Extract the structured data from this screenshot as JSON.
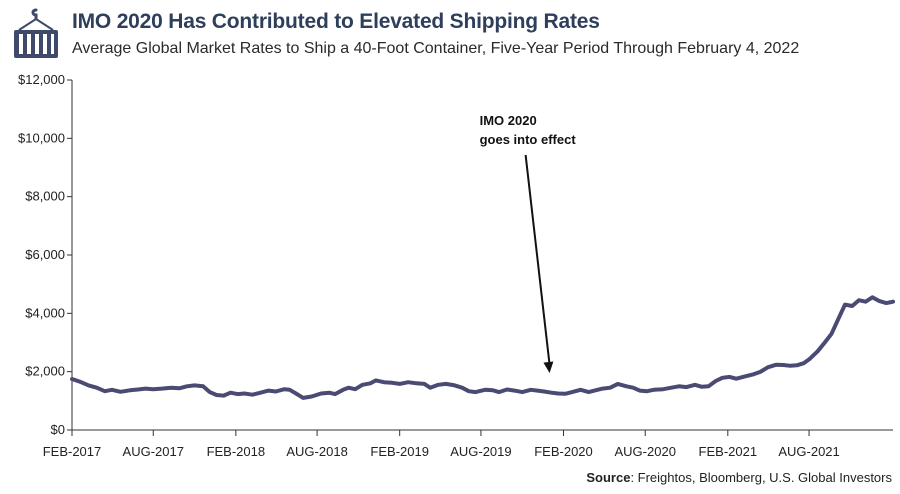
{
  "header": {
    "title": "IMO 2020 Has Contributed to Elevated Shipping Rates",
    "subtitle": "Average Global Market Rates to Ship a 40-Foot Container, Five-Year Period Through February 4, 2022",
    "logo_icon": "shipping-container-crane-icon"
  },
  "source": {
    "label": "Source",
    "text": ": Freightos, Bloomberg, U.S. Global Investors"
  },
  "colors": {
    "line": "#4a4a72",
    "title": "#2e3f5c",
    "axis": "#333333",
    "logo": "#3f4a6b"
  },
  "chart_data": {
    "type": "line",
    "title": "IMO 2020 Has Contributed to Elevated Shipping Rates",
    "xlabel": "",
    "ylabel": "",
    "ylim": [
      0,
      12000
    ],
    "yticks": [
      0,
      2000,
      4000,
      6000,
      8000,
      10000,
      12000
    ],
    "ytick_labels": [
      "$0",
      "$2,000",
      "$4,000",
      "$6,000",
      "$8,000",
      "$10,000",
      "$12,000"
    ],
    "x_range": [
      "2017-02-01",
      "2022-02-04"
    ],
    "xtick_dates": [
      "2017-02-01",
      "2017-08-01",
      "2018-02-01",
      "2018-08-01",
      "2019-02-01",
      "2019-08-01",
      "2020-02-01",
      "2020-08-01",
      "2021-02-01",
      "2021-08-01"
    ],
    "xtick_labels": [
      "FEB-2017",
      "AUG-2017",
      "FEB-2018",
      "AUG-2018",
      "FEB-2019",
      "AUG-2019",
      "FEB-2020",
      "AUG-2020",
      "FEB-2021",
      "AUG-2021"
    ],
    "grid": false,
    "legend": "none",
    "annotation": {
      "lines": [
        "IMO 2020",
        "goes into effect"
      ],
      "date": "2020-01-01",
      "value": 1750
    },
    "series": [
      {
        "points": [
          [
            "2017-02-01",
            1750
          ],
          [
            "2017-02-20",
            1650
          ],
          [
            "2017-03-10",
            1530
          ],
          [
            "2017-03-28",
            1450
          ],
          [
            "2017-04-15",
            1330
          ],
          [
            "2017-05-01",
            1380
          ],
          [
            "2017-05-20",
            1310
          ],
          [
            "2017-06-10",
            1360
          ],
          [
            "2017-06-28",
            1390
          ],
          [
            "2017-07-15",
            1420
          ],
          [
            "2017-08-01",
            1400
          ],
          [
            "2017-08-20",
            1420
          ],
          [
            "2017-09-10",
            1450
          ],
          [
            "2017-09-28",
            1430
          ],
          [
            "2017-10-15",
            1500
          ],
          [
            "2017-11-01",
            1530
          ],
          [
            "2017-11-20",
            1500
          ],
          [
            "2017-12-05",
            1300
          ],
          [
            "2017-12-20",
            1200
          ],
          [
            "2018-01-05",
            1180
          ],
          [
            "2018-01-20",
            1280
          ],
          [
            "2018-02-05",
            1230
          ],
          [
            "2018-02-20",
            1250
          ],
          [
            "2018-03-10",
            1210
          ],
          [
            "2018-03-28",
            1280
          ],
          [
            "2018-04-15",
            1350
          ],
          [
            "2018-05-01",
            1320
          ],
          [
            "2018-05-20",
            1400
          ],
          [
            "2018-06-01",
            1380
          ],
          [
            "2018-06-15",
            1250
          ],
          [
            "2018-07-01",
            1100
          ],
          [
            "2018-07-20",
            1150
          ],
          [
            "2018-08-10",
            1250
          ],
          [
            "2018-08-28",
            1280
          ],
          [
            "2018-09-10",
            1230
          ],
          [
            "2018-09-28",
            1380
          ],
          [
            "2018-10-10",
            1450
          ],
          [
            "2018-10-25",
            1400
          ],
          [
            "2018-11-10",
            1550
          ],
          [
            "2018-11-28",
            1600
          ],
          [
            "2018-12-10",
            1700
          ],
          [
            "2018-12-28",
            1640
          ],
          [
            "2019-01-15",
            1620
          ],
          [
            "2019-02-01",
            1580
          ],
          [
            "2019-02-20",
            1640
          ],
          [
            "2019-03-10",
            1600
          ],
          [
            "2019-03-28",
            1580
          ],
          [
            "2019-04-10",
            1450
          ],
          [
            "2019-04-28",
            1550
          ],
          [
            "2019-05-15",
            1580
          ],
          [
            "2019-06-01",
            1540
          ],
          [
            "2019-06-20",
            1450
          ],
          [
            "2019-07-05",
            1330
          ],
          [
            "2019-07-20",
            1300
          ],
          [
            "2019-08-10",
            1380
          ],
          [
            "2019-08-28",
            1360
          ],
          [
            "2019-09-10",
            1300
          ],
          [
            "2019-09-28",
            1390
          ],
          [
            "2019-10-15",
            1350
          ],
          [
            "2019-11-01",
            1300
          ],
          [
            "2019-11-20",
            1380
          ],
          [
            "2019-12-05",
            1350
          ],
          [
            "2019-12-20",
            1320
          ],
          [
            "2020-01-05",
            1280
          ],
          [
            "2020-01-20",
            1250
          ],
          [
            "2020-02-05",
            1240
          ],
          [
            "2020-02-20",
            1300
          ],
          [
            "2020-03-10",
            1380
          ],
          [
            "2020-03-28",
            1300
          ],
          [
            "2020-04-10",
            1350
          ],
          [
            "2020-04-28",
            1420
          ],
          [
            "2020-05-15",
            1450
          ],
          [
            "2020-06-01",
            1580
          ],
          [
            "2020-06-20",
            1500
          ],
          [
            "2020-07-05",
            1450
          ],
          [
            "2020-07-20",
            1350
          ],
          [
            "2020-08-05",
            1330
          ],
          [
            "2020-08-20",
            1380
          ],
          [
            "2020-09-10",
            1400
          ],
          [
            "2020-09-28",
            1450
          ],
          [
            "2020-10-15",
            1500
          ],
          [
            "2020-11-01",
            1470
          ],
          [
            "2020-11-20",
            1550
          ],
          [
            "2020-12-05",
            1480
          ],
          [
            "2020-12-20",
            1500
          ],
          [
            "2021-01-05",
            1680
          ],
          [
            "2021-01-20",
            1790
          ],
          [
            "2021-02-05",
            1820
          ],
          [
            "2021-02-20",
            1760
          ],
          [
            "2021-03-10",
            1830
          ],
          [
            "2021-03-28",
            1900
          ],
          [
            "2021-04-15",
            2000
          ],
          [
            "2021-05-01",
            2150
          ],
          [
            "2021-05-20",
            2240
          ],
          [
            "2021-06-05",
            2230
          ],
          [
            "2021-06-20",
            2200
          ],
          [
            "2021-07-05",
            2220
          ],
          [
            "2021-07-20",
            2290
          ],
          [
            "2021-08-01",
            2420
          ],
          [
            "2021-08-20",
            2700
          ],
          [
            "2021-09-05",
            3000
          ],
          [
            "2021-09-20",
            3300
          ],
          [
            "2021-10-05",
            3800
          ],
          [
            "2021-10-20",
            4300
          ],
          [
            "2021-11-05",
            4250
          ],
          [
            "2021-11-20",
            4450
          ],
          [
            "2021-12-05",
            4400
          ],
          [
            "2021-12-20",
            4550
          ],
          [
            "2022-01-05",
            4420
          ],
          [
            "2022-01-20",
            4350
          ],
          [
            "2022-02-04",
            4400
          ]
        ]
      }
    ]
  }
}
